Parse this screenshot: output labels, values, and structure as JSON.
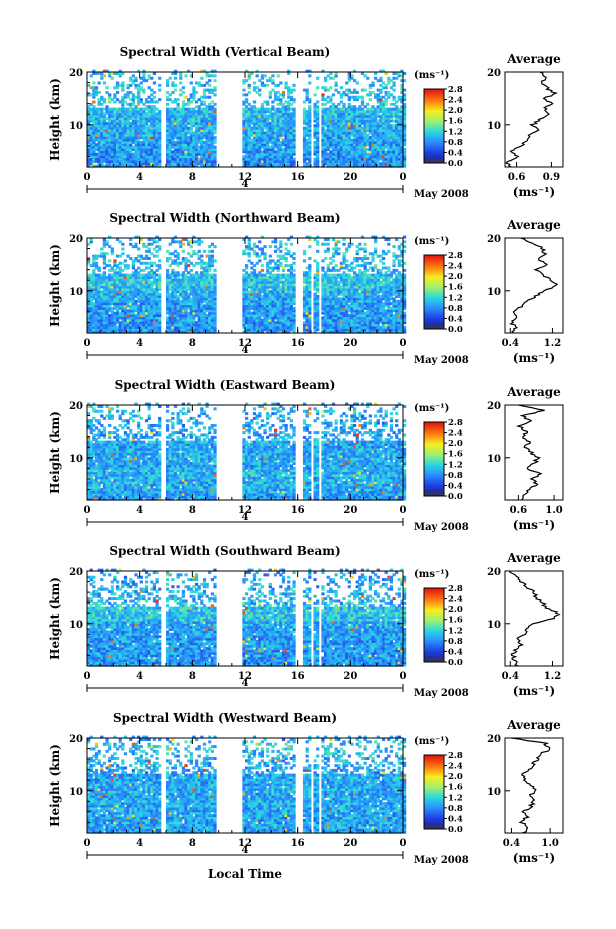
{
  "figure": {
    "xlabel": "Local Time"
  },
  "colorbar": {
    "unit": "(ms⁻¹)",
    "ticks": [
      "2.8",
      "2.4",
      "2.0",
      "1.6",
      "1.2",
      "0.8",
      "0.4",
      "0.0"
    ],
    "range": [
      0.0,
      2.8
    ]
  },
  "chart_data": [
    {
      "type": "heatmap",
      "title": "Spectral Width (Vertical Beam)",
      "ylabel": "Height (km)",
      "x_ticks": [
        "0",
        "4",
        "8",
        "12",
        "16",
        "20",
        "0"
      ],
      "xlim": [
        0,
        24
      ],
      "y_ticks": [
        "20",
        "10"
      ],
      "ylim": [
        2,
        20
      ],
      "date_tick": "4",
      "date_label": "May 2008",
      "data_gaps_hours": [
        [
          5.7,
          5.95
        ],
        [
          9.8,
          11.8
        ],
        [
          15.8,
          16.3
        ],
        [
          17.0,
          17.2
        ],
        [
          17.5,
          17.8
        ]
      ],
      "value_range": [
        0.0,
        2.8
      ],
      "profile": {
        "title": "Average",
        "unit": "(ms⁻¹)",
        "x_ticks": [
          "0.6",
          "0.9"
        ],
        "xlim": [
          0.5,
          1.0
        ],
        "y_ticks": [
          "20",
          "10"
        ],
        "heights_km": [
          2,
          3,
          4,
          5,
          6,
          7,
          8,
          9,
          10,
          11,
          12,
          13,
          14,
          15,
          16,
          17,
          18,
          19,
          20
        ],
        "values": [
          0.55,
          0.52,
          0.6,
          0.56,
          0.64,
          0.68,
          0.72,
          0.78,
          0.74,
          0.8,
          0.86,
          0.84,
          0.9,
          0.84,
          0.93,
          0.86,
          0.82,
          0.84,
          0.8
        ]
      }
    },
    {
      "type": "heatmap",
      "title": "Spectral Width (Northward Beam)",
      "ylabel": "Height (km)",
      "x_ticks": [
        "0",
        "4",
        "8",
        "12",
        "16",
        "20",
        "0"
      ],
      "xlim": [
        0,
        24
      ],
      "y_ticks": [
        "20",
        "10"
      ],
      "ylim": [
        2,
        20
      ],
      "date_tick": "4",
      "date_label": "May 2008",
      "data_gaps_hours": [
        [
          5.7,
          5.95
        ],
        [
          9.8,
          11.8
        ],
        [
          15.8,
          16.3
        ],
        [
          17.0,
          17.2
        ],
        [
          17.5,
          17.8
        ]
      ],
      "value_range": [
        0.0,
        2.8
      ],
      "profile": {
        "title": "Average",
        "unit": "(ms⁻¹)",
        "x_ticks": [
          "0.4",
          "1.2"
        ],
        "xlim": [
          0.3,
          1.4
        ],
        "y_ticks": [
          "20",
          "10"
        ],
        "heights_km": [
          2,
          3,
          4,
          5,
          6,
          7,
          8,
          9,
          10,
          11,
          12,
          13,
          14,
          15,
          16,
          17,
          18,
          19,
          20
        ],
        "values": [
          0.45,
          0.5,
          0.42,
          0.55,
          0.48,
          0.6,
          0.7,
          0.9,
          1.05,
          1.3,
          1.2,
          1.0,
          0.9,
          1.1,
          0.95,
          1.05,
          1.0,
          0.85,
          0.6
        ]
      }
    },
    {
      "type": "heatmap",
      "title": "Spectral Width (Eastward Beam)",
      "ylabel": "Height (km)",
      "x_ticks": [
        "0",
        "4",
        "8",
        "12",
        "16",
        "20",
        "0"
      ],
      "xlim": [
        0,
        24
      ],
      "y_ticks": [
        "20",
        "10"
      ],
      "ylim": [
        2,
        20
      ],
      "date_tick": "4",
      "date_label": "May 2008",
      "data_gaps_hours": [
        [
          5.7,
          5.95
        ],
        [
          9.8,
          11.8
        ],
        [
          15.8,
          16.3
        ],
        [
          17.0,
          17.2
        ],
        [
          17.5,
          17.8
        ]
      ],
      "value_range": [
        0.0,
        2.8
      ],
      "profile": {
        "title": "Average",
        "unit": "(ms⁻¹)",
        "x_ticks": [
          "0.6",
          "1.0"
        ],
        "xlim": [
          0.45,
          1.1
        ],
        "y_ticks": [
          "20",
          "10"
        ],
        "heights_km": [
          2,
          3,
          4,
          5,
          6,
          7,
          8,
          9,
          10,
          11,
          12,
          13,
          14,
          15,
          16,
          17,
          18,
          19,
          20
        ],
        "values": [
          0.62,
          0.66,
          0.72,
          0.8,
          0.75,
          0.85,
          0.7,
          0.78,
          0.82,
          0.74,
          0.68,
          0.72,
          0.66,
          0.7,
          0.6,
          0.72,
          0.65,
          0.9,
          0.6
        ]
      }
    },
    {
      "type": "heatmap",
      "title": "Spectral Width (Southward Beam)",
      "ylabel": "Height (km)",
      "x_ticks": [
        "0",
        "4",
        "8",
        "12",
        "16",
        "20",
        "0"
      ],
      "xlim": [
        0,
        24
      ],
      "y_ticks": [
        "20",
        "10"
      ],
      "ylim": [
        2,
        20
      ],
      "date_tick": "4",
      "date_label": "May 2008",
      "data_gaps_hours": [
        [
          5.7,
          5.95
        ],
        [
          9.8,
          11.8
        ],
        [
          15.8,
          16.3
        ],
        [
          17.0,
          17.2
        ],
        [
          17.5,
          17.8
        ]
      ],
      "value_range": [
        0.0,
        2.8
      ],
      "profile": {
        "title": "Average",
        "unit": "(ms⁻¹)",
        "x_ticks": [
          "0.4",
          "1.2"
        ],
        "xlim": [
          0.3,
          1.4
        ],
        "y_ticks": [
          "20",
          "10"
        ],
        "heights_km": [
          2,
          3,
          4,
          5,
          6,
          7,
          8,
          9,
          10,
          11,
          12,
          13,
          14,
          15,
          16,
          17,
          18,
          19,
          20
        ],
        "values": [
          0.55,
          0.48,
          0.45,
          0.5,
          0.6,
          0.52,
          0.65,
          0.7,
          0.85,
          1.25,
          1.3,
          1.1,
          1.0,
          0.9,
          0.85,
          0.7,
          0.6,
          0.5,
          0.4
        ]
      }
    },
    {
      "type": "heatmap",
      "title": "Spectral Width (Westward Beam)",
      "ylabel": "Height (km)",
      "x_ticks": [
        "0",
        "4",
        "8",
        "12",
        "16",
        "20",
        "0"
      ],
      "xlim": [
        0,
        24
      ],
      "y_ticks": [
        "20",
        "10"
      ],
      "ylim": [
        2,
        20
      ],
      "date_tick": "4",
      "date_label": "May 2008",
      "data_gaps_hours": [
        [
          5.7,
          5.95
        ],
        [
          9.8,
          11.8
        ],
        [
          15.8,
          16.3
        ],
        [
          17.0,
          17.2
        ],
        [
          17.5,
          17.8
        ]
      ],
      "value_range": [
        0.0,
        2.8
      ],
      "profile": {
        "title": "Average",
        "unit": "(ms⁻¹)",
        "x_ticks": [
          "0.4",
          "1.0"
        ],
        "xlim": [
          0.3,
          1.2
        ],
        "y_ticks": [
          "20",
          "10"
        ],
        "heights_km": [
          2,
          3,
          4,
          5,
          6,
          7,
          8,
          9,
          10,
          11,
          12,
          13,
          14,
          15,
          16,
          17,
          18,
          19,
          20
        ],
        "values": [
          0.58,
          0.66,
          0.56,
          0.64,
          0.6,
          0.7,
          0.76,
          0.68,
          0.78,
          0.7,
          0.62,
          0.58,
          0.66,
          0.74,
          0.8,
          0.86,
          1.0,
          0.92,
          0.4
        ]
      }
    }
  ]
}
